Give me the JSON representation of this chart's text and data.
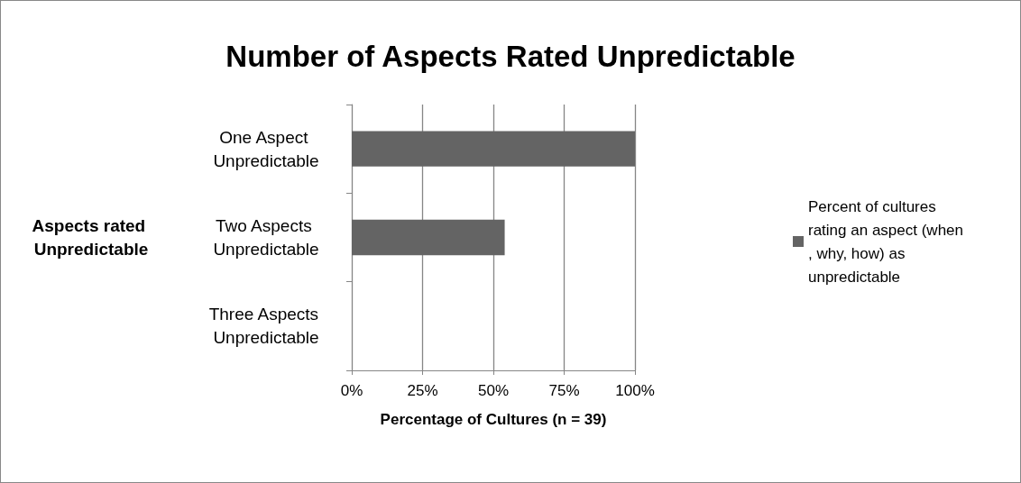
{
  "chart_data": {
    "type": "bar",
    "orientation": "horizontal",
    "title": "Number of Aspects Rated Unpredictable",
    "xlabel": "Percentage of Cultures (n = 39)",
    "ylabel": "Aspects rated Unpredictable",
    "categories": [
      "One Aspect Unpredictable",
      "Two Aspects Unpredictable",
      "Three Aspects Unpredictable"
    ],
    "series": [
      {
        "name": "Percent of cultures rating an aspect (when, why, how) as unpredictable",
        "color": "#646464",
        "values": [
          100,
          54,
          0
        ]
      }
    ],
    "xlim": [
      0,
      100
    ],
    "xticks": [
      {
        "value": 0,
        "label": "0%"
      },
      {
        "value": 25,
        "label": "25%"
      },
      {
        "value": 50,
        "label": "50%"
      },
      {
        "value": 75,
        "label": "75%"
      },
      {
        "value": 100,
        "label": "100%"
      }
    ],
    "grid": "x",
    "legend": "right"
  }
}
